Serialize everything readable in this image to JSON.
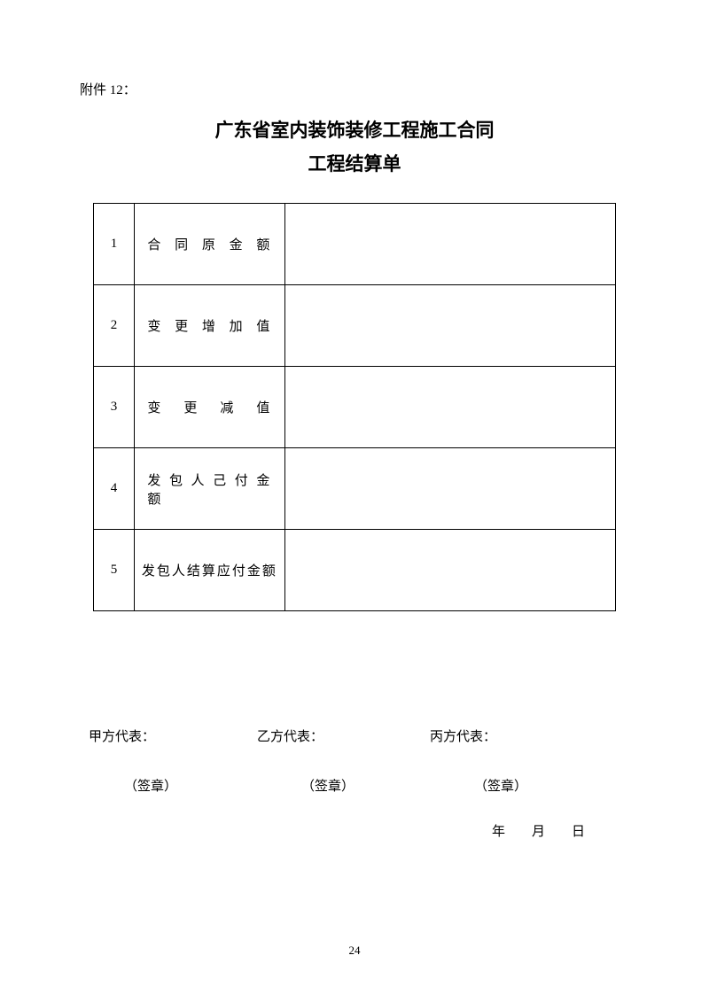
{
  "attachment_label": "附件 12：",
  "title_line1": "广东省室内装饰装修工程施工合同",
  "title_line2": "工程结算单",
  "table": {
    "rows": [
      {
        "num": "1",
        "label": "合 同 原 金 额",
        "value": ""
      },
      {
        "num": "2",
        "label": "变 更 增 加 值",
        "value": ""
      },
      {
        "num": "3",
        "label": "变 更 减 值",
        "value": ""
      },
      {
        "num": "4",
        "label": "发 包 人 己 付 金 额",
        "value": ""
      },
      {
        "num": "5",
        "label": "发包人结算应付金额",
        "value": ""
      }
    ]
  },
  "signatures": {
    "party_a": "甲方代表：",
    "party_b": "乙方代表：",
    "party_c": "丙方代表：",
    "seal": "（签章）"
  },
  "date": {
    "year": "年",
    "month": "月",
    "day": "日"
  },
  "page_number": "24"
}
